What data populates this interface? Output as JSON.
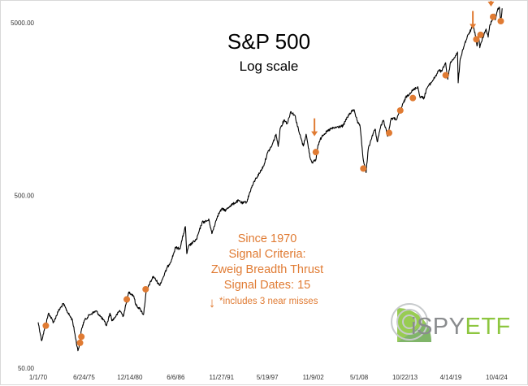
{
  "chart_data": {
    "type": "line",
    "title": "S&P 500",
    "subtitle": "Log scale",
    "yscale": "log",
    "ylim": [
      50,
      6000
    ],
    "xlim": [
      "1970-01-01",
      "2025-06-30"
    ],
    "grid": false,
    "y_tick_labels": [
      {
        "value": 50,
        "label": "50.00"
      },
      {
        "value": 500,
        "label": "500.00"
      },
      {
        "value": 5000,
        "label": "5000.00"
      }
    ],
    "x_tick_labels": [
      {
        "value": "1970-01-01",
        "label": "1/1/70"
      },
      {
        "value": "1975-06-24",
        "label": "6/24/75"
      },
      {
        "value": "1980-12-14",
        "label": "12/14/80"
      },
      {
        "value": "1986-06-06",
        "label": "6/6/86"
      },
      {
        "value": "1991-11-27",
        "label": "11/27/91"
      },
      {
        "value": "1997-05-19",
        "label": "5/19/97"
      },
      {
        "value": "2002-11-09",
        "label": "11/9/02"
      },
      {
        "value": "2008-05-01",
        "label": "5/1/08"
      },
      {
        "value": "2013-10-22",
        "label": "10/22/13"
      },
      {
        "value": "2019-04-14",
        "label": "4/14/19"
      },
      {
        "value": "2024-10-04",
        "label": "10/4/24"
      }
    ],
    "series": [
      {
        "color": "#000000",
        "points": [
          [
            "1970-01-01",
            92
          ],
          [
            "1970-06-01",
            72
          ],
          [
            "1970-12-01",
            90
          ],
          [
            "1971-04-01",
            104
          ],
          [
            "1971-11-01",
            92
          ],
          [
            "1972-06-01",
            107
          ],
          [
            "1973-01-01",
            118
          ],
          [
            "1973-08-01",
            104
          ],
          [
            "1974-02-01",
            95
          ],
          [
            "1974-10-01",
            63
          ],
          [
            "1974-12-01",
            68
          ],
          [
            "1975-03-01",
            83
          ],
          [
            "1975-07-01",
            94
          ],
          [
            "1976-03-01",
            102
          ],
          [
            "1976-12-01",
            107
          ],
          [
            "1977-06-01",
            100
          ],
          [
            "1977-12-01",
            93
          ],
          [
            "1978-03-01",
            88
          ],
          [
            "1978-08-01",
            104
          ],
          [
            "1978-11-01",
            94
          ],
          [
            "1979-06-01",
            102
          ],
          [
            "1979-10-01",
            108
          ],
          [
            "1980-03-01",
            100
          ],
          [
            "1980-11-01",
            138
          ],
          [
            "1981-06-01",
            131
          ],
          [
            "1981-09-01",
            116
          ],
          [
            "1982-03-01",
            110
          ],
          [
            "1982-08-01",
            102
          ],
          [
            "1982-12-01",
            140
          ],
          [
            "1983-10-01",
            170
          ],
          [
            "1984-07-01",
            151
          ],
          [
            "1984-12-01",
            167
          ],
          [
            "1985-06-01",
            191
          ],
          [
            "1985-12-01",
            211
          ],
          [
            "1986-06-01",
            250
          ],
          [
            "1986-12-01",
            245
          ],
          [
            "1987-08-01",
            330
          ],
          [
            "1987-10-01",
            230
          ],
          [
            "1988-01-01",
            255
          ],
          [
            "1988-12-01",
            278
          ],
          [
            "1989-08-01",
            350
          ],
          [
            "1989-12-01",
            352
          ],
          [
            "1990-06-01",
            360
          ],
          [
            "1990-10-01",
            300
          ],
          [
            "1991-06-01",
            380
          ],
          [
            "1991-12-01",
            417
          ],
          [
            "1992-06-01",
            410
          ],
          [
            "1992-12-01",
            435
          ],
          [
            "1993-06-01",
            450
          ],
          [
            "1993-12-01",
            466
          ],
          [
            "1994-06-01",
            450
          ],
          [
            "1994-12-01",
            459
          ],
          [
            "1995-06-01",
            545
          ],
          [
            "1995-12-01",
            615
          ],
          [
            "1996-06-01",
            670
          ],
          [
            "1996-12-01",
            740
          ],
          [
            "1997-06-01",
            885
          ],
          [
            "1997-12-01",
            970
          ],
          [
            "1998-06-01",
            1130
          ],
          [
            "1998-09-01",
            960
          ],
          [
            "1998-12-01",
            1229
          ],
          [
            "1999-06-01",
            1370
          ],
          [
            "1999-10-01",
            1300
          ],
          [
            "2000-03-01",
            1527
          ],
          [
            "2000-09-01",
            1450
          ],
          [
            "2001-03-01",
            1160
          ],
          [
            "2001-09-01",
            965
          ],
          [
            "2002-01-01",
            1130
          ],
          [
            "2002-07-01",
            820
          ],
          [
            "2002-10-01",
            776
          ],
          [
            "2003-03-01",
            800
          ],
          [
            "2003-06-01",
            975
          ],
          [
            "2003-12-01",
            1111
          ],
          [
            "2004-12-01",
            1211
          ],
          [
            "2005-12-01",
            1248
          ],
          [
            "2006-06-01",
            1260
          ],
          [
            "2006-12-01",
            1418
          ],
          [
            "2007-07-01",
            1540
          ],
          [
            "2007-10-01",
            1565
          ],
          [
            "2008-03-01",
            1310
          ],
          [
            "2008-06-01",
            1280
          ],
          [
            "2008-11-01",
            800
          ],
          [
            "2009-03-01",
            677
          ],
          [
            "2009-06-01",
            920
          ],
          [
            "2009-12-01",
            1115
          ],
          [
            "2010-04-01",
            1210
          ],
          [
            "2010-07-01",
            1020
          ],
          [
            "2010-12-01",
            1257
          ],
          [
            "2011-04-01",
            1360
          ],
          [
            "2011-10-01",
            1100
          ],
          [
            "2012-03-01",
            1400
          ],
          [
            "2012-11-01",
            1380
          ],
          [
            "2013-06-01",
            1620
          ],
          [
            "2013-12-01",
            1848
          ],
          [
            "2014-06-01",
            1960
          ],
          [
            "2014-12-01",
            2058
          ],
          [
            "2015-05-01",
            2130
          ],
          [
            "2015-08-01",
            1870
          ],
          [
            "2016-02-01",
            1830
          ],
          [
            "2016-06-01",
            2090
          ],
          [
            "2016-12-01",
            2238
          ],
          [
            "2017-06-01",
            2430
          ],
          [
            "2017-12-01",
            2673
          ],
          [
            "2018-02-01",
            2580
          ],
          [
            "2018-09-01",
            2930
          ],
          [
            "2018-12-01",
            2350
          ],
          [
            "2019-04-01",
            2940
          ],
          [
            "2019-12-01",
            3230
          ],
          [
            "2020-02-01",
            3380
          ],
          [
            "2020-03-01",
            2240
          ],
          [
            "2020-06-01",
            3100
          ],
          [
            "2020-12-01",
            3750
          ],
          [
            "2021-06-01",
            4300
          ],
          [
            "2021-12-01",
            4766
          ],
          [
            "2022-03-01",
            4400
          ],
          [
            "2022-06-01",
            3660
          ],
          [
            "2022-08-01",
            4280
          ],
          [
            "2022-10-01",
            3580
          ],
          [
            "2023-02-01",
            4100
          ],
          [
            "2023-07-01",
            4590
          ],
          [
            "2023-10-01",
            4120
          ],
          [
            "2023-12-01",
            4770
          ],
          [
            "2024-07-01",
            5600
          ],
          [
            "2024-08-01",
            5190
          ],
          [
            "2024-12-01",
            6050
          ],
          [
            "2025-02-01",
            6140
          ],
          [
            "2025-04-01",
            4980
          ],
          [
            "2025-06-01",
            6050
          ]
        ]
      }
    ],
    "signal_dates": [
      {
        "date": "1970-12-01",
        "value": 88
      },
      {
        "date": "1975-01-01",
        "value": 70
      },
      {
        "date": "1975-03-01",
        "value": 76
      },
      {
        "date": "1980-08-01",
        "value": 125
      },
      {
        "date": "1982-11-01",
        "value": 143
      },
      {
        "date": "2003-03-01",
        "value": 890
      },
      {
        "date": "2008-11-01",
        "value": 715
      },
      {
        "date": "2011-12-01",
        "value": 1150
      },
      {
        "date": "2013-04-01",
        "value": 1550
      },
      {
        "date": "2014-10-01",
        "value": 1830
      },
      {
        "date": "2018-09-01",
        "value": 2480
      },
      {
        "date": "2022-05-01",
        "value": 4000
      },
      {
        "date": "2022-11-01",
        "value": 4250
      },
      {
        "date": "2024-05-01",
        "value": 5400
      },
      {
        "date": "2025-04-01",
        "value": 5100
      }
    ],
    "near_miss_arrows": [
      {
        "date": "2003-01-01",
        "value": 1100
      },
      {
        "date": "2021-12-01",
        "value": 4600
      },
      {
        "date": "2024-02-01",
        "value": 6200
      }
    ],
    "colors": {
      "line": "#000000",
      "signal": "#e07b33",
      "info_text": "#e07b33"
    }
  },
  "info_box": {
    "line1": "Since 1970",
    "line2": "Signal Criteria:",
    "line3": "Zweig Breadth Thrust",
    "line4": "Signal Dates: 15",
    "arrow_glyph": "↓",
    "note": "*includes 3 near misses"
  },
  "logo": {
    "text_prefix": "iSPY",
    "text_suffix": "ETF",
    "colors": {
      "green": "#8dc63f",
      "gray": "#8a8c8e"
    }
  }
}
